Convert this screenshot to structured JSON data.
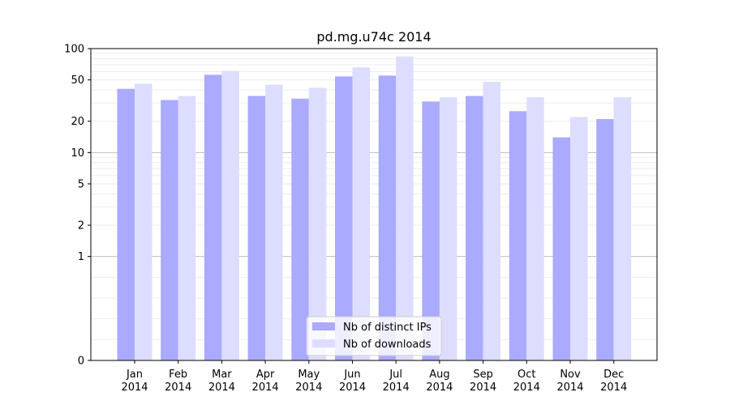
{
  "chart_data": {
    "type": "bar",
    "title": "pd.mg.u74c 2014",
    "xlabel": "",
    "ylabel": "",
    "yscale": "symlog",
    "ylim": [
      0,
      100
    ],
    "yticks": [
      0,
      1,
      2,
      5,
      10,
      20,
      50,
      100
    ],
    "grid": "horizontal",
    "legend_position": "bottom-center",
    "categories": [
      [
        "Jan",
        "2014"
      ],
      [
        "Feb",
        "2014"
      ],
      [
        "Mar",
        "2014"
      ],
      [
        "Apr",
        "2014"
      ],
      [
        "May",
        "2014"
      ],
      [
        "Jun",
        "2014"
      ],
      [
        "Jul",
        "2014"
      ],
      [
        "Aug",
        "2014"
      ],
      [
        "Sep",
        "2014"
      ],
      [
        "Oct",
        "2014"
      ],
      [
        "Nov",
        "2014"
      ],
      [
        "Dec",
        "2014"
      ]
    ],
    "series": [
      {
        "name": "Nb of distinct IPs",
        "color": "#aaaaff",
        "values": [
          41,
          32,
          56,
          35,
          33,
          54,
          55,
          31,
          35,
          25,
          14,
          21
        ]
      },
      {
        "name": "Nb of downloads",
        "color": "#ddddff",
        "values": [
          46,
          35,
          61,
          45,
          42,
          66,
          84,
          34,
          48,
          34,
          22,
          34
        ]
      }
    ]
  }
}
